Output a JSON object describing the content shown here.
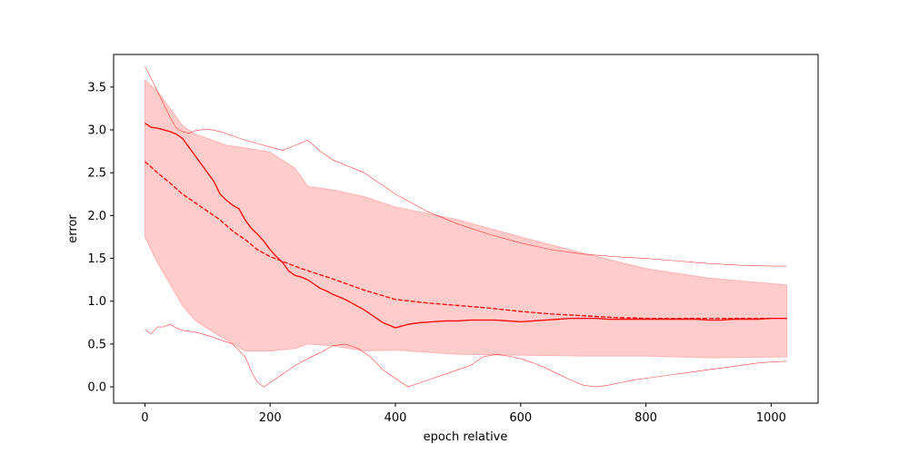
{
  "chart_data": {
    "type": "line",
    "title": "",
    "xlabel": "epoch relative",
    "ylabel": "error",
    "xlim": [
      -50,
      1075
    ],
    "ylim": [
      -0.19,
      3.88
    ],
    "xticks": [
      0,
      200,
      400,
      600,
      800,
      1000
    ],
    "xtick_labels": [
      "0",
      "200",
      "400",
      "600",
      "800",
      "1000"
    ],
    "yticks": [
      0.0,
      0.5,
      1.0,
      1.5,
      2.0,
      2.5,
      3.0,
      3.5
    ],
    "ytick_labels": [
      "0.0",
      "0.5",
      "1.0",
      "1.5",
      "2.0",
      "2.5",
      "3.0",
      "3.5"
    ],
    "grid": false,
    "legend": "none",
    "colors": {
      "line": "#ff0000",
      "band": "#ffcccc",
      "band_edge": "#ffb3b3"
    },
    "band": {
      "x": [
        0,
        20,
        40,
        60,
        80,
        100,
        130,
        160,
        200,
        240,
        260,
        300,
        350,
        400,
        500,
        600,
        700,
        800,
        900,
        1025
      ],
      "upper": [
        3.58,
        3.45,
        3.25,
        3.05,
        2.95,
        2.9,
        2.82,
        2.79,
        2.74,
        2.55,
        2.34,
        2.3,
        2.22,
        2.1,
        1.95,
        1.75,
        1.56,
        1.38,
        1.27,
        1.19
      ],
      "lower": [
        1.75,
        1.45,
        1.2,
        0.95,
        0.78,
        0.68,
        0.55,
        0.42,
        0.42,
        0.45,
        0.5,
        0.48,
        0.42,
        0.43,
        0.38,
        0.37,
        0.36,
        0.36,
        0.34,
        0.35
      ]
    },
    "series": [
      {
        "style": "solid",
        "width": 1.3,
        "x": [
          0,
          10,
          20,
          30,
          40,
          50,
          60,
          70,
          80,
          90,
          100,
          110,
          120,
          130,
          140,
          150,
          160,
          170,
          180,
          190,
          200,
          210,
          220,
          230,
          240,
          250,
          260,
          270,
          280,
          290,
          300,
          310,
          320,
          330,
          340,
          350,
          360,
          370,
          380,
          390,
          400,
          410,
          420,
          440,
          460,
          480,
          500,
          520,
          540,
          560,
          580,
          600,
          620,
          640,
          660,
          680,
          700,
          720,
          740,
          760,
          780,
          800,
          820,
          840,
          860,
          880,
          900,
          920,
          940,
          960,
          980,
          1000,
          1025
        ],
        "y": [
          3.08,
          3.03,
          3.02,
          3.0,
          2.98,
          2.95,
          2.9,
          2.8,
          2.7,
          2.6,
          2.5,
          2.4,
          2.25,
          2.18,
          2.12,
          2.08,
          1.95,
          1.85,
          1.78,
          1.7,
          1.6,
          1.52,
          1.45,
          1.35,
          1.3,
          1.28,
          1.25,
          1.2,
          1.15,
          1.12,
          1.08,
          1.05,
          1.02,
          0.98,
          0.94,
          0.9,
          0.85,
          0.8,
          0.75,
          0.72,
          0.69,
          0.71,
          0.73,
          0.75,
          0.76,
          0.77,
          0.77,
          0.78,
          0.78,
          0.78,
          0.77,
          0.76,
          0.77,
          0.78,
          0.79,
          0.8,
          0.8,
          0.8,
          0.79,
          0.79,
          0.79,
          0.79,
          0.79,
          0.79,
          0.79,
          0.79,
          0.78,
          0.78,
          0.79,
          0.79,
          0.79,
          0.8,
          0.8
        ]
      },
      {
        "style": "dashed",
        "width": 1.3,
        "x": [
          0,
          20,
          40,
          60,
          80,
          100,
          120,
          140,
          160,
          180,
          200,
          250,
          300,
          350,
          400,
          450,
          500,
          550,
          600,
          650,
          700,
          750,
          800,
          850,
          900,
          950,
          1000,
          1025
        ],
        "y": [
          2.63,
          2.5,
          2.38,
          2.25,
          2.15,
          2.05,
          1.95,
          1.82,
          1.72,
          1.6,
          1.52,
          1.38,
          1.26,
          1.13,
          1.02,
          0.98,
          0.95,
          0.92,
          0.88,
          0.85,
          0.83,
          0.81,
          0.8,
          0.8,
          0.8,
          0.8,
          0.8,
          0.8
        ]
      },
      {
        "style": "thin",
        "width": 0.6,
        "x": [
          0,
          10,
          20,
          30,
          40,
          50,
          60,
          70,
          80,
          90,
          100,
          120,
          140,
          160,
          180,
          200,
          220,
          240,
          260,
          280,
          300,
          350,
          400,
          450,
          500,
          550,
          600,
          650,
          700,
          750,
          800,
          850,
          900,
          950,
          1000,
          1025
        ],
        "y": [
          3.74,
          3.6,
          3.45,
          3.3,
          3.15,
          3.02,
          2.98,
          2.96,
          2.99,
          3.0,
          3.01,
          2.98,
          2.93,
          2.88,
          2.84,
          2.8,
          2.76,
          2.82,
          2.88,
          2.75,
          2.65,
          2.5,
          2.25,
          2.05,
          1.9,
          1.78,
          1.68,
          1.6,
          1.55,
          1.52,
          1.5,
          1.47,
          1.44,
          1.42,
          1.41,
          1.41
        ]
      },
      {
        "style": "thin",
        "width": 0.6,
        "x": [
          0,
          10,
          20,
          30,
          40,
          50,
          60,
          80,
          100,
          120,
          140,
          160,
          170,
          180,
          190,
          200,
          220,
          240,
          260,
          280,
          300,
          320,
          340,
          360,
          380,
          400,
          420,
          440,
          460,
          480,
          500,
          520,
          540,
          560,
          580,
          600,
          620,
          640,
          660,
          680,
          700,
          720,
          740,
          760,
          780,
          800,
          820,
          840,
          860,
          880,
          900,
          920,
          940,
          960,
          980,
          1000,
          1025
        ],
        "y": [
          0.67,
          0.62,
          0.7,
          0.7,
          0.73,
          0.69,
          0.66,
          0.64,
          0.6,
          0.55,
          0.5,
          0.35,
          0.18,
          0.05,
          0.0,
          0.05,
          0.15,
          0.25,
          0.33,
          0.4,
          0.48,
          0.5,
          0.45,
          0.35,
          0.2,
          0.1,
          0.0,
          0.05,
          0.1,
          0.15,
          0.2,
          0.25,
          0.35,
          0.38,
          0.36,
          0.33,
          0.28,
          0.22,
          0.15,
          0.08,
          0.02,
          0.0,
          0.02,
          0.05,
          0.08,
          0.1,
          0.12,
          0.14,
          0.16,
          0.18,
          0.2,
          0.22,
          0.24,
          0.26,
          0.28,
          0.29,
          0.3
        ]
      }
    ]
  }
}
